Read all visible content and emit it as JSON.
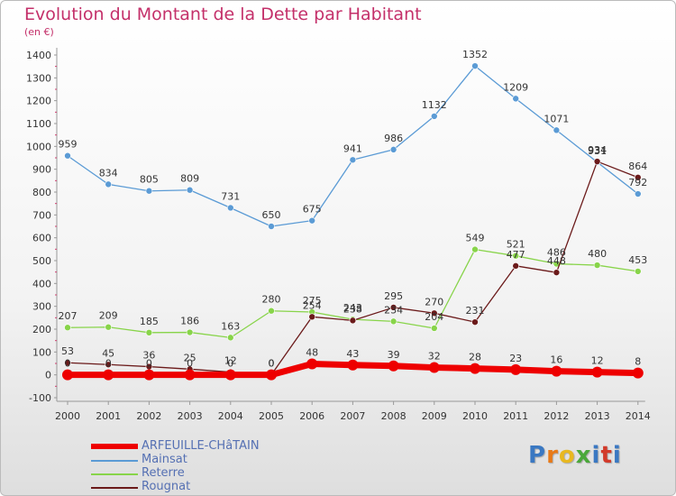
{
  "chart_data": {
    "type": "line",
    "title": "Evolution du Montant de la Dette par Habitant",
    "subtitle": "(en €)",
    "x": [
      "2000",
      "2001",
      "2002",
      "2003",
      "2004",
      "2005",
      "2006",
      "2007",
      "2008",
      "2009",
      "2010",
      "2011",
      "2012",
      "2013",
      "2014"
    ],
    "y_ticks": [
      "-100",
      "0",
      "100",
      "200",
      "300",
      "400",
      "500",
      "600",
      "700",
      "800",
      "900",
      "1000",
      "1100",
      "1200",
      "1300",
      "1400"
    ],
    "ylim": [
      -100,
      1400
    ],
    "grid": false,
    "legend_position": "bottom-left",
    "series": [
      {
        "name": "ARFEUILLE-CHâTAIN",
        "color": "#ee0000",
        "values": [
          0,
          0,
          0,
          0,
          0,
          0,
          48,
          43,
          39,
          32,
          28,
          23,
          16,
          12,
          8
        ],
        "labels": [
          "0",
          "0",
          "0",
          "0",
          "0",
          "0",
          "48",
          "43",
          "39",
          "32",
          "28",
          "23",
          "16",
          "12",
          "8"
        ]
      },
      {
        "name": "Mainsat",
        "color": "#5b9bd5",
        "values": [
          959,
          834,
          805,
          809,
          731,
          650,
          675,
          941,
          986,
          1132,
          1352,
          1209,
          1071,
          931,
          792
        ],
        "labels": [
          "959",
          "834",
          "805",
          "809",
          "731",
          "650",
          "675",
          "941",
          "986",
          "1132",
          "1352",
          "1209",
          "1071",
          "931",
          "792"
        ]
      },
      {
        "name": "Reterre",
        "color": "#88d44a",
        "values": [
          207,
          209,
          185,
          186,
          163,
          280,
          275,
          243,
          234,
          204,
          549,
          521,
          486,
          480,
          453
        ],
        "labels": [
          "207",
          "209",
          "185",
          "186",
          "163",
          "280",
          "275",
          "243",
          "234",
          "204",
          "549",
          "521",
          "486",
          "480",
          "453"
        ]
      },
      {
        "name": "Rougnat",
        "color": "#6b1a1a",
        "values": [
          53,
          45,
          36,
          25,
          12,
          0,
          254,
          238,
          295,
          270,
          231,
          477,
          448,
          934,
          864
        ],
        "labels": [
          "53",
          "45",
          "36",
          "25",
          "12",
          "0",
          "254",
          "238",
          "295",
          "270",
          "231",
          "477",
          "448",
          "934",
          "864"
        ]
      }
    ]
  },
  "logo": {
    "text": "Proxiti"
  }
}
